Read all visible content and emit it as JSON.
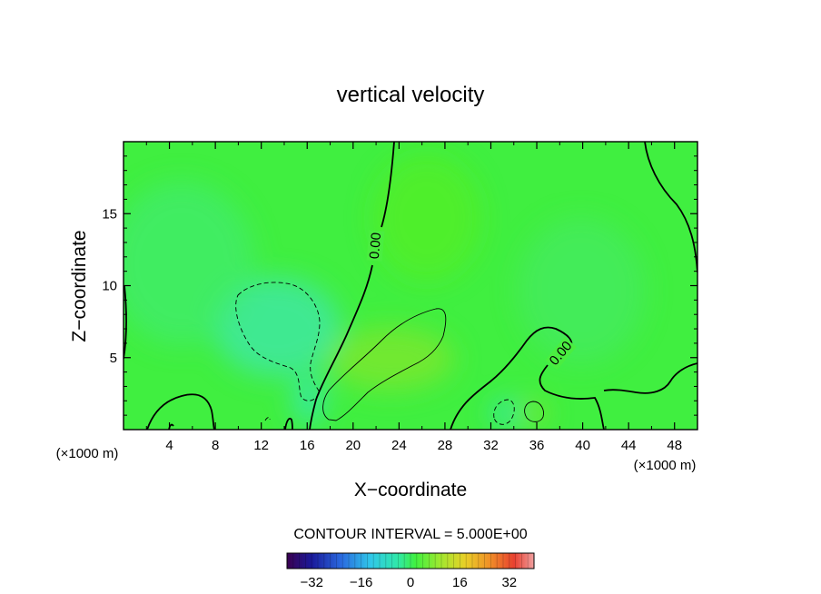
{
  "chart_data": {
    "type": "heatmap",
    "title": "vertical velocity",
    "xlabel": "X−coordinate",
    "ylabel": "Z−coordinate",
    "x_unit_left": "(×1000 m)",
    "x_unit_right": "(×1000 m)",
    "xlim": [
      0,
      50
    ],
    "ylim": [
      0,
      20
    ],
    "x_ticks": [
      4,
      8,
      12,
      16,
      20,
      24,
      28,
      32,
      36,
      40,
      44,
      48
    ],
    "y_ticks": [
      5,
      10,
      15
    ],
    "contour_labels": [
      "0.00",
      "0.00"
    ],
    "contour_interval_text": "CONTOUR INTERVAL =  5.000E+00",
    "colorbar": {
      "range": [
        -40,
        40
      ],
      "ticks": [
        -32,
        -16,
        0,
        16,
        32
      ],
      "tick_labels": [
        "−32",
        "−16",
        "0",
        "16",
        "32"
      ]
    },
    "features": [
      {
        "type": "updraft",
        "x_center": 23,
        "z_center": 4.5,
        "value_approx": 5
      },
      {
        "type": "updraft",
        "x_center": 35.5,
        "z_center": 1.3,
        "value_approx": 5
      },
      {
        "type": "downdraft",
        "x_center": 13.5,
        "z_center": 7.5,
        "value_approx": -5
      },
      {
        "type": "downdraft",
        "x_center": 33,
        "z_center": 1.2,
        "value_approx": -5
      }
    ]
  }
}
